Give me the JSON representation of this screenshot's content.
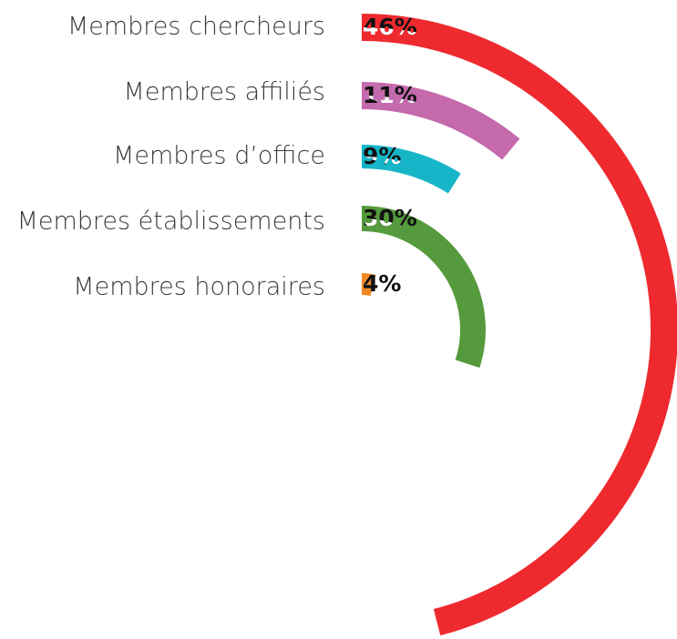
{
  "chart_data": {
    "type": "radial_bar",
    "categories": [
      "Membres chercheurs",
      "Membres affiliés",
      "Membres d’office",
      "Membres établissements",
      "Membres honoraires"
    ],
    "values": [
      46,
      11,
      9,
      30,
      4
    ],
    "value_labels": [
      "46%",
      "11%",
      "9%",
      "30%",
      "4%"
    ],
    "colors": [
      "#ee2a2f",
      "#c46aad",
      "#17b5c8",
      "#559a3c",
      "#f08a24"
    ]
  }
}
